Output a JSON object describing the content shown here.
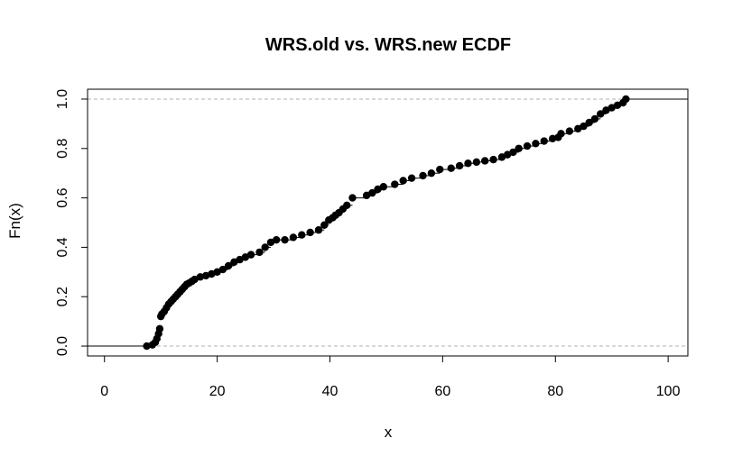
{
  "chart_data": {
    "type": "scatter",
    "title": "WRS.old vs. WRS.new ECDF",
    "xlabel": "x",
    "ylabel": "Fn(x)",
    "xlim": [
      -3,
      103.5
    ],
    "ylim": [
      -0.04,
      1.04
    ],
    "xticks": [
      0,
      20,
      40,
      60,
      80,
      100
    ],
    "yticks": [
      0.0,
      0.2,
      0.4,
      0.6,
      0.8,
      1.0
    ],
    "xtick_labels": [
      "0",
      "20",
      "40",
      "60",
      "80",
      "100"
    ],
    "ytick_labels": [
      "0.0",
      "0.2",
      "0.4",
      "0.6",
      "0.8",
      "1.0"
    ],
    "reference_lines_y": [
      0,
      1
    ],
    "step_tail": {
      "left_from": -3,
      "right_to": 103.5
    },
    "series": [
      {
        "x": [
          7.5,
          8.5,
          9.0,
          9.3,
          9.6,
          9.8,
          10.0,
          10.2,
          10.6,
          11.0,
          11.4,
          11.8,
          12.2,
          12.6,
          13.0,
          13.4,
          13.8,
          14.2,
          14.6,
          15.0,
          15.5,
          16.0,
          17.0,
          18.0,
          19.0,
          20.0,
          21.0,
          22.0,
          23.0,
          24.0,
          25.0,
          26.0,
          27.5,
          28.5,
          29.5,
          30.5,
          32.0,
          33.5,
          35.0,
          36.5,
          38.0,
          39.0,
          39.8,
          40.5,
          41.0,
          41.6,
          42.3,
          43.0,
          44.0,
          46.5,
          47.5,
          48.5,
          49.5,
          51.5,
          53.0,
          54.5,
          56.5,
          58.0,
          59.5,
          61.5,
          63.0,
          64.5,
          66.0,
          67.5,
          69.0,
          70.5,
          71.5,
          72.5,
          73.5,
          75.0,
          76.5,
          78.0,
          79.5,
          80.5,
          81.0,
          82.5,
          84.0,
          85.0,
          86.0,
          87.0,
          88.0,
          89.0,
          90.0,
          91.0,
          92.0,
          92.5
        ],
        "y": [
          0.0,
          0.005,
          0.015,
          0.03,
          0.05,
          0.07,
          0.12,
          0.13,
          0.14,
          0.155,
          0.17,
          0.18,
          0.19,
          0.2,
          0.21,
          0.22,
          0.23,
          0.24,
          0.25,
          0.255,
          0.262,
          0.27,
          0.28,
          0.285,
          0.292,
          0.3,
          0.31,
          0.325,
          0.34,
          0.35,
          0.36,
          0.37,
          0.38,
          0.4,
          0.42,
          0.43,
          0.43,
          0.44,
          0.45,
          0.46,
          0.47,
          0.49,
          0.51,
          0.52,
          0.53,
          0.54,
          0.555,
          0.57,
          0.6,
          0.61,
          0.62,
          0.635,
          0.645,
          0.655,
          0.67,
          0.68,
          0.69,
          0.7,
          0.715,
          0.72,
          0.73,
          0.74,
          0.745,
          0.75,
          0.755,
          0.765,
          0.775,
          0.785,
          0.8,
          0.81,
          0.82,
          0.83,
          0.84,
          0.845,
          0.86,
          0.87,
          0.88,
          0.89,
          0.905,
          0.92,
          0.94,
          0.955,
          0.965,
          0.975,
          0.985,
          1.0
        ]
      }
    ]
  }
}
